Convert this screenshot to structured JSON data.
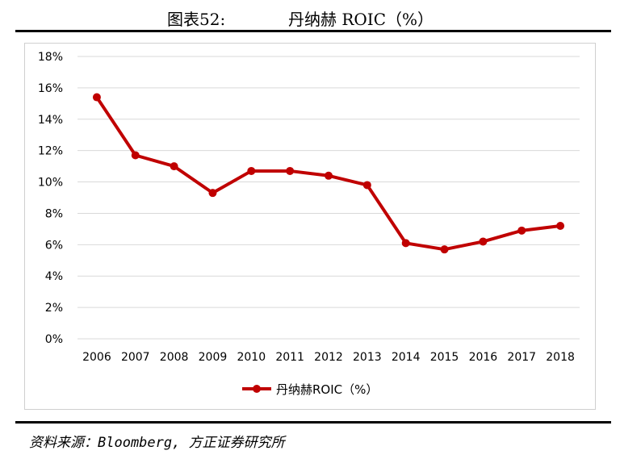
{
  "figure": {
    "label": "图表52:",
    "title": "丹纳赫 ROIC（%）"
  },
  "source": "资料来源：Bloomberg, 方正证券研究所",
  "colors": {
    "series": "#c00000",
    "grid": "#d9d9d9",
    "text": "#000000"
  },
  "chart_data": {
    "type": "line",
    "title": "",
    "xlabel": "",
    "ylabel": "",
    "x": [
      "2006",
      "2007",
      "2008",
      "2009",
      "2010",
      "2011",
      "2012",
      "2013",
      "2014",
      "2015",
      "2016",
      "2017",
      "2018"
    ],
    "ylim": [
      0,
      18
    ],
    "yticks": [
      "0%",
      "2%",
      "4%",
      "6%",
      "8%",
      "10%",
      "12%",
      "14%",
      "16%",
      "18%"
    ],
    "ytick_values": [
      0,
      2,
      4,
      6,
      8,
      10,
      12,
      14,
      16,
      18
    ],
    "series": [
      {
        "name": "丹纳赫ROIC（%）",
        "values": [
          15.4,
          11.7,
          11.0,
          9.3,
          10.7,
          10.7,
          10.4,
          9.8,
          6.1,
          5.7,
          6.2,
          6.9,
          7.2
        ]
      }
    ],
    "grid": true,
    "legend": "bottom-center"
  }
}
